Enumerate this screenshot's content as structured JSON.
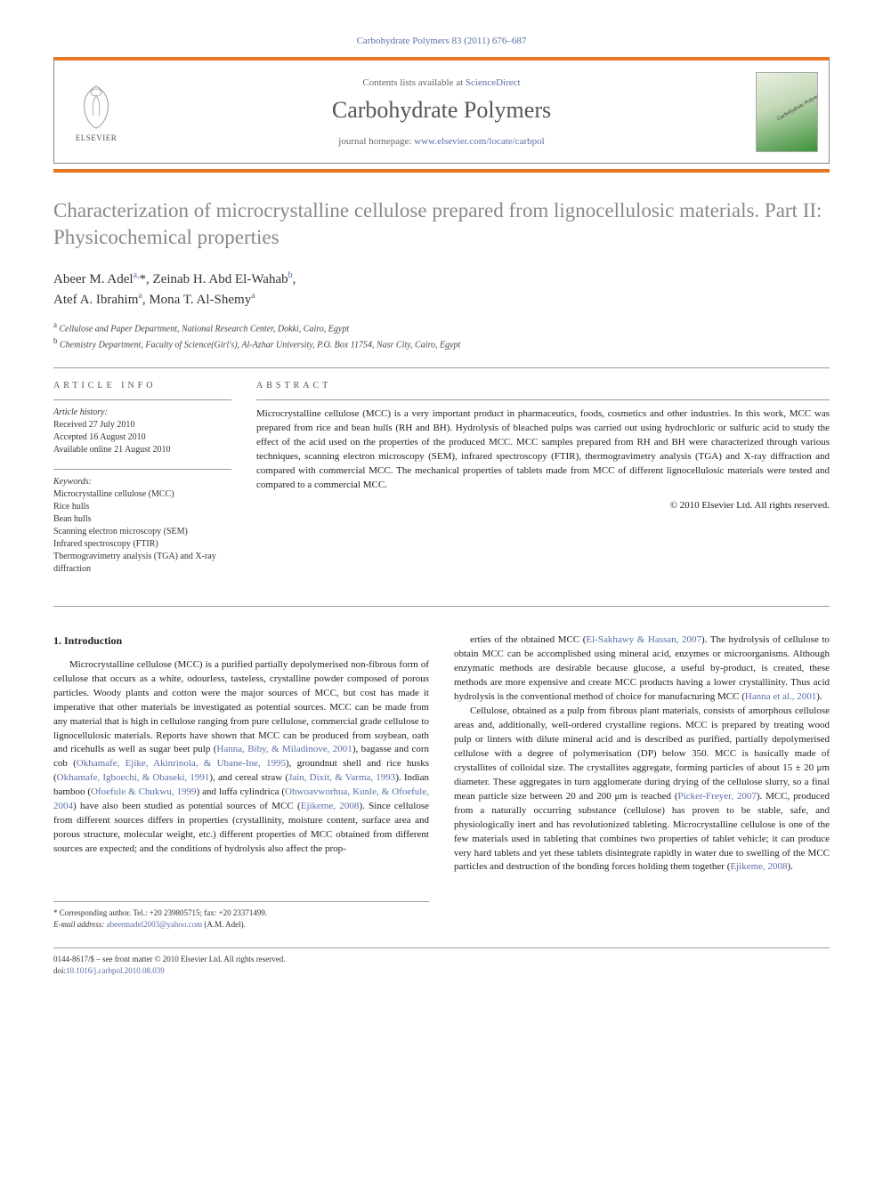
{
  "journal_ref": "Carbohydrate Polymers 83 (2011) 676–687",
  "header": {
    "publisher": "ELSEVIER",
    "contents_prefix": "Contents lists available at ",
    "contents_link": "ScienceDirect",
    "journal_name": "Carbohydrate Polymers",
    "homepage_prefix": "journal homepage: ",
    "homepage_link": "www.elsevier.com/locate/carbpol"
  },
  "title": "Characterization of microcrystalline cellulose prepared from lignocellulosic materials. Part II: Physicochemical properties",
  "authors_html": "Abeer M. Adel<sup>a,</sup>*, Zeinab H. Abd El-Wahab<sup>b</sup>,<br>Atef A. Ibrahim<sup>a</sup>, Mona T. Al-Shemy<sup>a</sup>",
  "affiliations": [
    {
      "sup": "a",
      "text": "Cellulose and Paper Department, National Research Center, Dokki, Cairo, Egypt"
    },
    {
      "sup": "b",
      "text": "Chemistry Department, Faculty of Science(Girl's), Al-Azhar University, P.O. Box 11754, Nasr City, Cairo, Egypt"
    }
  ],
  "info": {
    "heading": "ARTICLE INFO",
    "history_label": "Article history:",
    "history": "Received 27 July 2010\nAccepted 16 August 2010\nAvailable online 21 August 2010",
    "keywords_label": "Keywords:",
    "keywords": "Microcrystalline cellulose (MCC)\nRice hulls\nBean hulls\nScanning electron microscopy (SEM)\nInfrared spectroscopy (FTIR)\nThermogravimetry analysis (TGA) and X-ray diffraction"
  },
  "abstract": {
    "heading": "ABSTRACT",
    "text": "Microcrystalline cellulose (MCC) is a very important product in pharmaceutics, foods, cosmetics and other industries. In this work, MCC was prepared from rice and bean hulls (RH and BH). Hydrolysis of bleached pulps was carried out using hydrochloric or sulfuric acid to study the effect of the acid used on the properties of the produced MCC. MCC samples prepared from RH and BH were characterized through various techniques, scanning electron microscopy (SEM), infrared spectroscopy (FTIR), thermogravimetry analysis (TGA) and X-ray diffraction and compared with commercial MCC. The mechanical properties of tablets made from MCC of different lignocellulosic materials were tested and compared to a commercial MCC.",
    "copyright": "© 2010 Elsevier Ltd. All rights reserved."
  },
  "body": {
    "section_heading": "1. Introduction",
    "col1_p1": "Microcrystalline cellulose (MCC) is a purified partially depolymerised non-fibrous form of cellulose that occurs as a white, odourless, tasteless, crystalline powder composed of porous particles. Woody plants and cotton were the major sources of MCC, but cost has made it imperative that other materials be investigated as potential sources. MCC can be made from any material that is high in cellulose ranging from pure cellulose, commercial grade cellulose to lignocellulosic materials. Reports have shown that MCC can be produced from soybean, oath and ricehulls as well as sugar beet pulp (<span class=\"cite\">Hanna, Biby, & Miladinove, 2001</span>), bagasse and corn cob (<span class=\"cite\">Okhamafe, Ejike, Akinrinola, & Ubane-Ine, 1995</span>), groundnut shell and rice husks (<span class=\"cite\">Okhamafe, Igboechi, & Obaseki, 1991</span>), and cereal straw (<span class=\"cite\">Jain, Dixit, & Varma, 1993</span>). Indian bamboo (<span class=\"cite\">Ofoefule & Chukwu, 1999</span>) and luffa cylindrica (<span class=\"cite\">Ohwoavworhua, Kunle, & Ofoefule, 2004</span>) have also been studied as potential sources of MCC (<span class=\"cite\">Ejikeme, 2008</span>). Since cellulose from different sources differs in properties (crystallinity, moisture content, surface area and porous structure, molecular weight, etc.) different properties of MCC obtained from different sources are expected; and the conditions of hydrolysis also affect the prop-",
    "col2_p1": "erties of the obtained MCC (<span class=\"cite\">El-Sakhawy & Hassan, 2007</span>). The hydrolysis of cellulose to obtain MCC can be accomplished using mineral acid, enzymes or microorganisms. Although enzymatic methods are desirable because glucose, a useful by-product, is created, these methods are more expensive and create MCC products having a lower crystallinity. Thus acid hydrolysis is the conventional method of choice for manufacturing MCC (<span class=\"cite\">Hanna et al., 2001</span>).",
    "col2_p2": "Cellulose, obtained as a pulp from fibrous plant materials, consists of amorphous cellulose areas and, additionally, well-ordered crystalline regions. MCC is prepared by treating wood pulp or linters with dilute mineral acid and is described as purified, partially depolymerised cellulose with a degree of polymerisation (DP) below 350. MCC is basically made of crystallites of colloidal size. The crystallites aggregate, forming particles of about 15 ± 20 μm diameter. These aggregates in turn agglomerate during drying of the cellulose slurry, so a final mean particle size between 20 and 200 μm is reached (<span class=\"cite\">Picker-Freyer, 2007</span>). MCC, produced from a naturally occurring substance (cellulose) has proven to be stable, safe, and physiologically inert and has revolutionized tableting. Microcrystalline cellulose is one of the few materials used in tableting that combines two properties of tablet vehicle; it can produce very hard tablets and yet these tablets disintegrate rapidly in water due to swelling of the MCC particles and destruction of the bonding forces holding them together (<span class=\"cite\">Ejikeme, 2008</span>)."
  },
  "corr": {
    "line1": "* Corresponding author. Tel.: +20 239805715; fax: +20 23371499.",
    "email_label": "E-mail address: ",
    "email": "abeermadel2003@yahoo.com",
    "email_suffix": " (A.M. Adel)."
  },
  "footer": {
    "line1": "0144-8617/$ – see front matter © 2010 Elsevier Ltd. All rights reserved.",
    "doi_label": "doi:",
    "doi": "10.1016/j.carbpol.2010.08.039"
  },
  "colors": {
    "accent_orange": "#e87722",
    "link_blue": "#5b6fa8",
    "title_grey": "#888888"
  }
}
